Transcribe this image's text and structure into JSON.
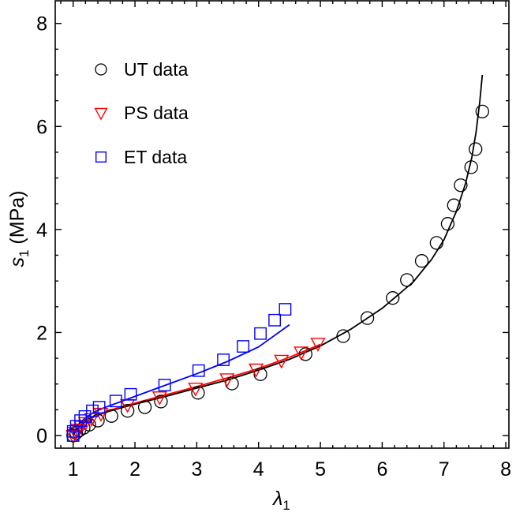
{
  "chart_data": {
    "type": "scatter",
    "title": "",
    "xlabel": "λ1",
    "ylabel": "s1 (MPa)",
    "xlim": [
      0.71,
      8.05
    ],
    "ylim": [
      -0.245,
      8.44
    ],
    "xticks": [
      1,
      2,
      3,
      4,
      5,
      6,
      7,
      8
    ],
    "yticks": [
      0,
      2,
      4,
      6,
      8
    ],
    "x_minor_step": 0.2,
    "y_minor_step": 0.5,
    "grid": false,
    "legend_position": "upper-left",
    "legend": [
      {
        "label": "UT data",
        "marker": "circle",
        "color": "#000000"
      },
      {
        "label": "PS data",
        "marker": "triangle-down",
        "color": "#ff0000"
      },
      {
        "label": "ET data",
        "marker": "square",
        "color": "#0000ff"
      }
    ],
    "series": [
      {
        "name": "UT data",
        "kind": "markers",
        "marker": "circle",
        "color": "#000000",
        "x": [
          1.0,
          1.05,
          1.1,
          1.17,
          1.26,
          1.4,
          1.62,
          1.88,
          2.16,
          2.42,
          3.02,
          3.57,
          4.03,
          4.76,
          5.37,
          5.76,
          6.17,
          6.4,
          6.64,
          6.88,
          7.06,
          7.16,
          7.27,
          7.44,
          7.51,
          7.62
        ],
        "y": [
          0.0,
          0.05,
          0.1,
          0.15,
          0.21,
          0.29,
          0.38,
          0.48,
          0.55,
          0.66,
          0.83,
          1.01,
          1.19,
          1.58,
          1.93,
          2.28,
          2.67,
          3.02,
          3.39,
          3.74,
          4.11,
          4.47,
          4.86,
          5.21,
          5.56,
          6.29
        ]
      },
      {
        "name": "PS data",
        "kind": "markers",
        "marker": "triangle-down",
        "color": "#ff0000",
        "x": [
          1.0,
          1.04,
          1.08,
          1.13,
          1.2,
          1.3,
          1.45,
          1.88,
          2.4,
          2.98,
          3.49,
          3.96,
          4.37,
          4.69,
          4.96
        ],
        "y": [
          0.0,
          0.06,
          0.12,
          0.18,
          0.25,
          0.33,
          0.43,
          0.6,
          0.75,
          0.92,
          1.1,
          1.29,
          1.46,
          1.62,
          1.79
        ]
      },
      {
        "name": "ET data",
        "kind": "markers",
        "marker": "square",
        "color": "#0000ff",
        "x": [
          1.0,
          1.0,
          1.05,
          1.12,
          1.19,
          1.31,
          1.42,
          1.69,
          1.93,
          2.48,
          3.03,
          3.43,
          3.75,
          4.03,
          4.26,
          4.43
        ],
        "y": [
          0.0,
          0.08,
          0.18,
          0.29,
          0.37,
          0.48,
          0.55,
          0.67,
          0.8,
          0.98,
          1.26,
          1.47,
          1.73,
          1.98,
          2.24,
          2.45
        ]
      },
      {
        "name": "UT fit",
        "kind": "line",
        "color": "#000000",
        "x": [
          1.0,
          1.05,
          1.1,
          1.2,
          1.35,
          1.5,
          1.75,
          2.0,
          2.5,
          3.0,
          3.5,
          4.0,
          4.5,
          5.0,
          5.5,
          6.0,
          6.5,
          6.8,
          7.0,
          7.2,
          7.35,
          7.45,
          7.52,
          7.58,
          7.62
        ],
        "y": [
          0.0,
          0.1,
          0.17,
          0.27,
          0.37,
          0.44,
          0.53,
          0.61,
          0.76,
          0.92,
          1.08,
          1.27,
          1.48,
          1.74,
          2.07,
          2.47,
          2.98,
          3.42,
          3.8,
          4.35,
          4.9,
          5.4,
          5.9,
          6.5,
          7.0
        ]
      },
      {
        "name": "PS fit",
        "kind": "line",
        "color": "#ff0000",
        "x": [
          1.0,
          1.05,
          1.1,
          1.2,
          1.35,
          1.5,
          1.75,
          2.0,
          2.5,
          3.0,
          3.5,
          4.0,
          4.5,
          5.0
        ],
        "y": [
          0.0,
          0.1,
          0.17,
          0.28,
          0.38,
          0.45,
          0.55,
          0.63,
          0.79,
          0.95,
          1.12,
          1.3,
          1.52,
          1.77
        ]
      },
      {
        "name": "ET fit",
        "kind": "line",
        "color": "#0000ff",
        "x": [
          1.0,
          1.05,
          1.1,
          1.2,
          1.35,
          1.5,
          1.75,
          2.0,
          2.5,
          3.0,
          3.5,
          4.0,
          4.5
        ],
        "y": [
          0.0,
          0.14,
          0.23,
          0.35,
          0.46,
          0.54,
          0.65,
          0.76,
          0.98,
          1.2,
          1.44,
          1.72,
          2.15
        ]
      }
    ]
  }
}
